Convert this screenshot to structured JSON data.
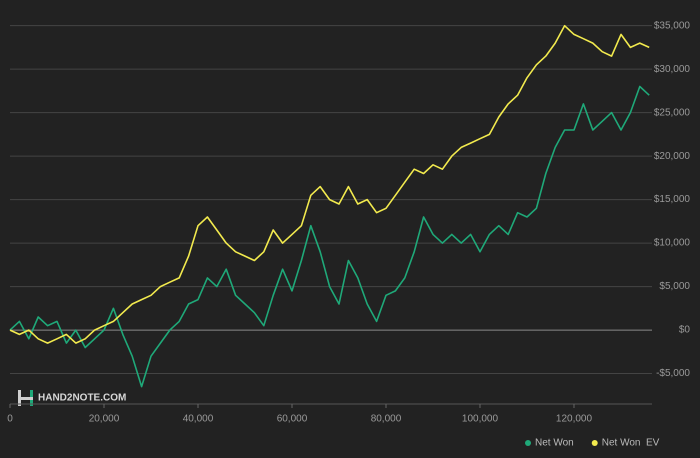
{
  "chart_data": {
    "type": "line",
    "watermark": "HAND2NOTE.COM",
    "x": [
      0,
      2000,
      4000,
      6000,
      8000,
      10000,
      12000,
      14000,
      16000,
      18000,
      20000,
      22000,
      24000,
      26000,
      28000,
      30000,
      32000,
      34000,
      36000,
      38000,
      40000,
      42000,
      44000,
      46000,
      48000,
      50000,
      52000,
      54000,
      56000,
      58000,
      60000,
      62000,
      64000,
      66000,
      68000,
      70000,
      72000,
      74000,
      76000,
      78000,
      80000,
      82000,
      84000,
      86000,
      88000,
      90000,
      92000,
      94000,
      96000,
      98000,
      100000,
      102000,
      104000,
      106000,
      108000,
      110000,
      112000,
      114000,
      116000,
      118000,
      120000,
      122000,
      124000,
      126000,
      128000,
      130000,
      132000,
      134000,
      136000
    ],
    "series": [
      {
        "name": "Net Won",
        "color": "#1fa979",
        "values": [
          0,
          1000,
          -1000,
          1500,
          500,
          1000,
          -1500,
          0,
          -2000,
          -1000,
          0,
          2500,
          -500,
          -3000,
          -6500,
          -3000,
          -1500,
          0,
          1000,
          3000,
          3500,
          6000,
          5000,
          7000,
          4000,
          3000,
          2000,
          500,
          4000,
          7000,
          4500,
          8000,
          12000,
          9000,
          5000,
          3000,
          8000,
          6000,
          3000,
          1000,
          4000,
          4500,
          6000,
          9000,
          13000,
          11000,
          10000,
          11000,
          10000,
          11000,
          9000,
          11000,
          12000,
          11000,
          13500,
          13000,
          14000,
          18000,
          21000,
          23000,
          23000,
          26000,
          23000,
          24000,
          25000,
          23000,
          25000,
          28000,
          27000
        ]
      },
      {
        "name": "Net Won  EV",
        "color": "#f2ea4e",
        "values": [
          0,
          -500,
          0,
          -1000,
          -1500,
          -1000,
          -500,
          -1500,
          -1000,
          0,
          500,
          1000,
          2000,
          3000,
          3500,
          4000,
          5000,
          5500,
          6000,
          8500,
          12000,
          13000,
          11500,
          10000,
          9000,
          8500,
          8000,
          9000,
          11500,
          10000,
          11000,
          12000,
          15500,
          16500,
          15000,
          14500,
          16500,
          14500,
          15000,
          13500,
          14000,
          15500,
          17000,
          18500,
          18000,
          19000,
          18500,
          20000,
          21000,
          21500,
          22000,
          22500,
          24500,
          26000,
          27000,
          29000,
          30500,
          31500,
          33000,
          35000,
          34000,
          33500,
          33000,
          32000,
          31500,
          34000,
          32500,
          33000,
          32500
        ]
      }
    ],
    "xlim": [
      0,
      136600
    ],
    "xticks": [
      0,
      {
        "value": 20000,
        "label": "20,000"
      },
      {
        "value": 40000,
        "label": "40,000"
      },
      {
        "value": 60000,
        "label": "60,000"
      },
      {
        "value": 80000,
        "label": "80,000"
      },
      {
        "value": 100000,
        "label": "100,000"
      },
      {
        "value": 120000,
        "label": "120,000"
      }
    ],
    "ylim": [
      -8500,
      36800
    ],
    "yticks": [
      {
        "value": -5000,
        "label": "-$5,000"
      },
      {
        "value": 0,
        "label": "$0"
      },
      {
        "value": 5000,
        "label": "$5,000"
      },
      {
        "value": 10000,
        "label": "$10,000"
      },
      {
        "value": 15000,
        "label": "$15,000"
      },
      {
        "value": 20000,
        "label": "$20,000"
      },
      {
        "value": 25000,
        "label": "$25,000"
      },
      {
        "value": 30000,
        "label": "$30,000"
      },
      {
        "value": 35000,
        "label": "$35,000"
      }
    ],
    "grid": true,
    "legend": "bottom-right"
  }
}
